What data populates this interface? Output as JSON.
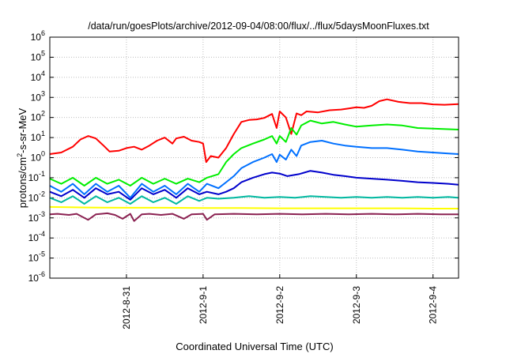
{
  "chart_data": {
    "type": "line",
    "title": "/data/run/goesPlots/archive/2012-09-04/08:00/flux/../flux/5daysMoonFluxes.txt",
    "xlabel": "Coordinated Universal Time (UTC)",
    "ylabel_main": "protons/cm",
    "ylabel_sup": "2",
    "ylabel_rest": "-s-sr-MeV",
    "yscale": "log",
    "ylim_exp": [
      -6,
      6
    ],
    "xlim_days": [
      "2012-08-30 00:00",
      "2012-09-04 08:00"
    ],
    "y_tick_labels": [
      {
        "base": "10",
        "exp": "-6"
      },
      {
        "base": "10",
        "exp": "-5"
      },
      {
        "base": "10",
        "exp": "-4"
      },
      {
        "base": "10",
        "exp": "-3"
      },
      {
        "base": "10",
        "exp": "-2"
      },
      {
        "base": "10",
        "exp": "-1"
      },
      {
        "base": "10",
        "exp": "0"
      },
      {
        "base": "10",
        "exp": "1"
      },
      {
        "base": "10",
        "exp": "2"
      },
      {
        "base": "10",
        "exp": "3"
      },
      {
        "base": "10",
        "exp": "4"
      },
      {
        "base": "10",
        "exp": "5"
      },
      {
        "base": "10",
        "exp": "6"
      }
    ],
    "x_tick_labels": [
      "2012-8-31",
      "2012-9-1",
      "2012-9-2",
      "2012-9-3",
      "2012-9-4"
    ],
    "grid": true,
    "series": [
      {
        "color": "#ff0000",
        "points": [
          [
            0.0,
            1.5
          ],
          [
            0.15,
            1.8
          ],
          [
            0.3,
            3.5
          ],
          [
            0.4,
            8
          ],
          [
            0.5,
            12
          ],
          [
            0.6,
            9
          ],
          [
            0.7,
            4
          ],
          [
            0.78,
            2
          ],
          [
            0.9,
            2.2
          ],
          [
            1.0,
            3
          ],
          [
            1.1,
            3.5
          ],
          [
            1.2,
            2.5
          ],
          [
            1.3,
            4
          ],
          [
            1.4,
            7
          ],
          [
            1.5,
            10
          ],
          [
            1.6,
            5
          ],
          [
            1.65,
            9
          ],
          [
            1.75,
            11
          ],
          [
            1.85,
            7
          ],
          [
            1.95,
            6
          ],
          [
            2.0,
            5
          ],
          [
            2.04,
            0.6
          ],
          [
            2.1,
            1.2
          ],
          [
            2.2,
            1.0
          ],
          [
            2.3,
            3
          ],
          [
            2.4,
            15
          ],
          [
            2.5,
            60
          ],
          [
            2.6,
            75
          ],
          [
            2.7,
            80
          ],
          [
            2.8,
            95
          ],
          [
            2.9,
            150
          ],
          [
            2.96,
            30
          ],
          [
            3.0,
            200
          ],
          [
            3.08,
            100
          ],
          [
            3.15,
            15
          ],
          [
            3.22,
            160
          ],
          [
            3.28,
            130
          ],
          [
            3.35,
            200
          ],
          [
            3.5,
            180
          ],
          [
            3.65,
            230
          ],
          [
            3.8,
            250
          ],
          [
            3.9,
            280
          ],
          [
            4.0,
            320
          ],
          [
            4.1,
            300
          ],
          [
            4.2,
            380
          ],
          [
            4.3,
            650
          ],
          [
            4.4,
            800
          ],
          [
            4.55,
            600
          ],
          [
            4.7,
            520
          ],
          [
            4.85,
            520
          ],
          [
            5.0,
            450
          ],
          [
            5.15,
            430
          ],
          [
            5.33,
            460
          ]
        ]
      },
      {
        "color": "#00ee00",
        "points": [
          [
            0.0,
            0.09
          ],
          [
            0.15,
            0.05
          ],
          [
            0.3,
            0.1
          ],
          [
            0.45,
            0.04
          ],
          [
            0.6,
            0.1
          ],
          [
            0.75,
            0.05
          ],
          [
            0.9,
            0.08
          ],
          [
            1.05,
            0.04
          ],
          [
            1.2,
            0.1
          ],
          [
            1.35,
            0.05
          ],
          [
            1.5,
            0.09
          ],
          [
            1.65,
            0.05
          ],
          [
            1.8,
            0.09
          ],
          [
            1.95,
            0.06
          ],
          [
            2.05,
            0.1
          ],
          [
            2.2,
            0.15
          ],
          [
            2.3,
            0.6
          ],
          [
            2.4,
            1.5
          ],
          [
            2.5,
            3
          ],
          [
            2.65,
            5
          ],
          [
            2.8,
            8
          ],
          [
            2.9,
            12
          ],
          [
            2.96,
            5
          ],
          [
            3.0,
            12
          ],
          [
            3.08,
            6
          ],
          [
            3.15,
            30
          ],
          [
            3.22,
            14
          ],
          [
            3.28,
            40
          ],
          [
            3.4,
            70
          ],
          [
            3.55,
            50
          ],
          [
            3.7,
            60
          ],
          [
            3.85,
            45
          ],
          [
            4.0,
            35
          ],
          [
            4.2,
            40
          ],
          [
            4.4,
            45
          ],
          [
            4.6,
            40
          ],
          [
            4.8,
            30
          ],
          [
            5.0,
            28
          ],
          [
            5.2,
            26
          ],
          [
            5.33,
            25
          ]
        ]
      },
      {
        "color": "#0070ff",
        "points": [
          [
            0.0,
            0.04
          ],
          [
            0.15,
            0.02
          ],
          [
            0.3,
            0.05
          ],
          [
            0.45,
            0.015
          ],
          [
            0.6,
            0.05
          ],
          [
            0.75,
            0.02
          ],
          [
            0.9,
            0.04
          ],
          [
            1.05,
            0.01
          ],
          [
            1.2,
            0.05
          ],
          [
            1.35,
            0.02
          ],
          [
            1.5,
            0.04
          ],
          [
            1.65,
            0.015
          ],
          [
            1.8,
            0.05
          ],
          [
            1.95,
            0.02
          ],
          [
            2.05,
            0.05
          ],
          [
            2.2,
            0.03
          ],
          [
            2.3,
            0.06
          ],
          [
            2.4,
            0.12
          ],
          [
            2.5,
            0.3
          ],
          [
            2.65,
            0.6
          ],
          [
            2.8,
            1.0
          ],
          [
            2.9,
            1.5
          ],
          [
            2.96,
            0.6
          ],
          [
            3.0,
            1.4
          ],
          [
            3.08,
            0.8
          ],
          [
            3.15,
            2.5
          ],
          [
            3.22,
            1.2
          ],
          [
            3.28,
            4
          ],
          [
            3.4,
            6
          ],
          [
            3.55,
            7
          ],
          [
            3.7,
            5
          ],
          [
            3.85,
            4
          ],
          [
            4.0,
            3.5
          ],
          [
            4.2,
            3
          ],
          [
            4.4,
            3
          ],
          [
            4.6,
            2.5
          ],
          [
            4.8,
            2
          ],
          [
            5.0,
            1.8
          ],
          [
            5.2,
            1.6
          ],
          [
            5.33,
            1.5
          ]
        ]
      },
      {
        "color": "#0000cc",
        "points": [
          [
            0.0,
            0.02
          ],
          [
            0.15,
            0.012
          ],
          [
            0.3,
            0.025
          ],
          [
            0.45,
            0.01
          ],
          [
            0.6,
            0.03
          ],
          [
            0.75,
            0.015
          ],
          [
            0.9,
            0.02
          ],
          [
            1.05,
            0.008
          ],
          [
            1.2,
            0.03
          ],
          [
            1.35,
            0.015
          ],
          [
            1.5,
            0.025
          ],
          [
            1.65,
            0.01
          ],
          [
            1.8,
            0.03
          ],
          [
            1.95,
            0.015
          ],
          [
            2.05,
            0.02
          ],
          [
            2.2,
            0.015
          ],
          [
            2.3,
            0.02
          ],
          [
            2.4,
            0.03
          ],
          [
            2.5,
            0.06
          ],
          [
            2.65,
            0.1
          ],
          [
            2.8,
            0.15
          ],
          [
            2.9,
            0.18
          ],
          [
            3.0,
            0.16
          ],
          [
            3.1,
            0.12
          ],
          [
            3.25,
            0.15
          ],
          [
            3.4,
            0.22
          ],
          [
            3.55,
            0.18
          ],
          [
            3.7,
            0.14
          ],
          [
            3.85,
            0.12
          ],
          [
            4.0,
            0.1
          ],
          [
            4.2,
            0.09
          ],
          [
            4.4,
            0.08
          ],
          [
            4.6,
            0.07
          ],
          [
            4.8,
            0.06
          ],
          [
            5.0,
            0.055
          ],
          [
            5.2,
            0.05
          ],
          [
            5.33,
            0.045
          ]
        ]
      },
      {
        "color": "#00b8a0",
        "points": [
          [
            0.0,
            0.01
          ],
          [
            0.15,
            0.006
          ],
          [
            0.3,
            0.012
          ],
          [
            0.45,
            0.005
          ],
          [
            0.6,
            0.012
          ],
          [
            0.75,
            0.006
          ],
          [
            0.9,
            0.01
          ],
          [
            1.05,
            0.005
          ],
          [
            1.2,
            0.012
          ],
          [
            1.35,
            0.006
          ],
          [
            1.5,
            0.01
          ],
          [
            1.65,
            0.005
          ],
          [
            1.8,
            0.012
          ],
          [
            1.95,
            0.007
          ],
          [
            2.05,
            0.01
          ],
          [
            2.2,
            0.009
          ],
          [
            2.4,
            0.01
          ],
          [
            2.6,
            0.012
          ],
          [
            2.8,
            0.01
          ],
          [
            3.0,
            0.011
          ],
          [
            3.2,
            0.01
          ],
          [
            3.4,
            0.012
          ],
          [
            3.6,
            0.011
          ],
          [
            3.8,
            0.01
          ],
          [
            4.0,
            0.011
          ],
          [
            4.2,
            0.01
          ],
          [
            4.4,
            0.011
          ],
          [
            4.6,
            0.01
          ],
          [
            4.8,
            0.011
          ],
          [
            5.0,
            0.01
          ],
          [
            5.2,
            0.011
          ],
          [
            5.33,
            0.01
          ]
        ]
      },
      {
        "color": "#ffff00",
        "points": [
          [
            0.0,
            0.0035
          ],
          [
            0.5,
            0.0033
          ],
          [
            1.0,
            0.0032
          ],
          [
            1.5,
            0.0032
          ],
          [
            2.0,
            0.0031
          ],
          [
            2.5,
            0.0031
          ],
          [
            3.0,
            0.003
          ],
          [
            3.5,
            0.003
          ],
          [
            4.0,
            0.003
          ],
          [
            4.5,
            0.003
          ],
          [
            5.0,
            0.0029
          ],
          [
            5.33,
            0.0029
          ]
        ]
      },
      {
        "color": "#8b2252",
        "points": [
          [
            0.0,
            0.0015
          ],
          [
            0.1,
            0.0016
          ],
          [
            0.25,
            0.0014
          ],
          [
            0.35,
            0.0016
          ],
          [
            0.5,
            0.0008
          ],
          [
            0.6,
            0.0015
          ],
          [
            0.75,
            0.0017
          ],
          [
            0.85,
            0.0014
          ],
          [
            0.95,
            0.0009
          ],
          [
            1.05,
            0.0016
          ],
          [
            1.1,
            0.0007
          ],
          [
            1.2,
            0.0015
          ],
          [
            1.3,
            0.0016
          ],
          [
            1.45,
            0.0014
          ],
          [
            1.6,
            0.0016
          ],
          [
            1.75,
            0.0009
          ],
          [
            1.85,
            0.0015
          ],
          [
            2.0,
            0.0016
          ],
          [
            2.05,
            0.0008
          ],
          [
            2.15,
            0.0015
          ],
          [
            2.4,
            0.0016
          ],
          [
            2.7,
            0.0015
          ],
          [
            3.0,
            0.0016
          ],
          [
            3.3,
            0.0015
          ],
          [
            3.6,
            0.0016
          ],
          [
            3.9,
            0.0015
          ],
          [
            4.2,
            0.0016
          ],
          [
            4.5,
            0.0015
          ],
          [
            4.8,
            0.0016
          ],
          [
            5.1,
            0.0015
          ],
          [
            5.33,
            0.0015
          ]
        ]
      }
    ]
  }
}
